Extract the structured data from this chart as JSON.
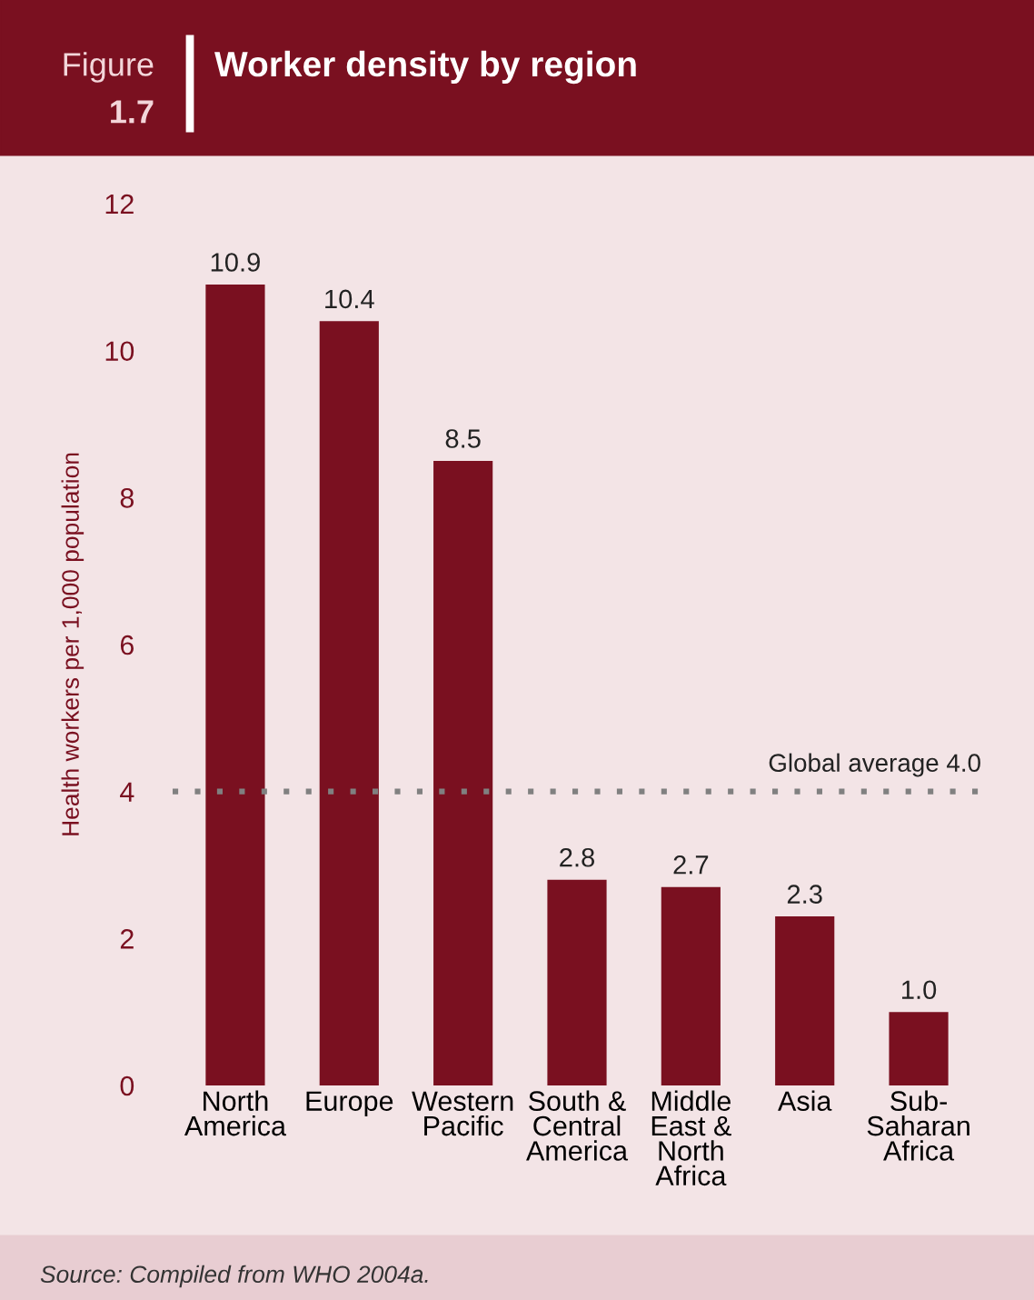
{
  "chart_data": {
    "type": "bar",
    "title": "Worker density by region",
    "ylabel": "Health workers per 1,000 population",
    "annotations": [
      "Figure",
      "1.7",
      "Source: Compiled from WHO 2004a."
    ],
    "categories": [
      "North\nAmerica",
      "Europe",
      "Western\nPacific",
      "South &\nCentral\nAmerica",
      "Middle\nEast &\nNorth\nAfrica",
      "Asia",
      "Sub-\nSaharan\nAfrica"
    ],
    "values": [
      10.9,
      10.4,
      8.5,
      2.8,
      2.7,
      2.3,
      1.0
    ],
    "value_labels": [
      "10.9",
      "10.4",
      "8.5",
      "2.8",
      "2.7",
      "2.3",
      "1.0"
    ],
    "color": "#7a1020",
    "ylim": [
      0,
      12
    ],
    "yticks": [
      0,
      2,
      4,
      6,
      8,
      10,
      12
    ],
    "grid": false,
    "legend": false,
    "ref_lines": [
      {
        "axis": "y",
        "value": 4.0,
        "label": "Global average 4.0",
        "color": "#808080",
        "line_style": "dotted"
      }
    ]
  }
}
